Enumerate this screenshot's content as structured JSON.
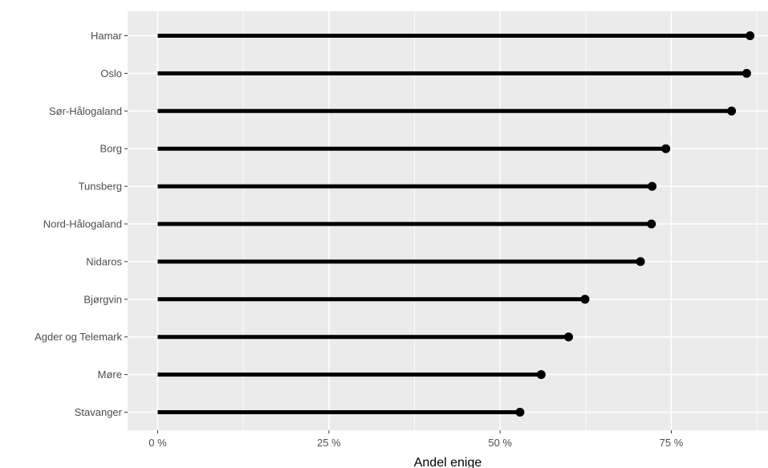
{
  "chart_data": {
    "type": "lollipop",
    "xlabel": "Andel enige",
    "ylabel": "",
    "xlim": [
      -0.045,
      0.89
    ],
    "x_ticks": [
      {
        "value": 0,
        "label": "0 %"
      },
      {
        "value": 0.25,
        "label": "25 %"
      },
      {
        "value": 0.5,
        "label": "50 %"
      },
      {
        "value": 0.75,
        "label": "75 %"
      }
    ],
    "categories": [
      "Hamar",
      "Oslo",
      "Sør-Hålogaland",
      "Borg",
      "Tunsberg",
      "Nord-Hålogaland",
      "Nidaros",
      "Bjørgvin",
      "Agder og Telemark",
      "Møre",
      "Stavanger"
    ],
    "values": [
      0.865,
      0.86,
      0.838,
      0.742,
      0.722,
      0.721,
      0.705,
      0.624,
      0.6,
      0.56,
      0.529
    ],
    "grid": true,
    "legend": "none",
    "colors": {
      "panel": "#ebebeb",
      "grid": "#ffffff",
      "mark": "#000000"
    }
  }
}
